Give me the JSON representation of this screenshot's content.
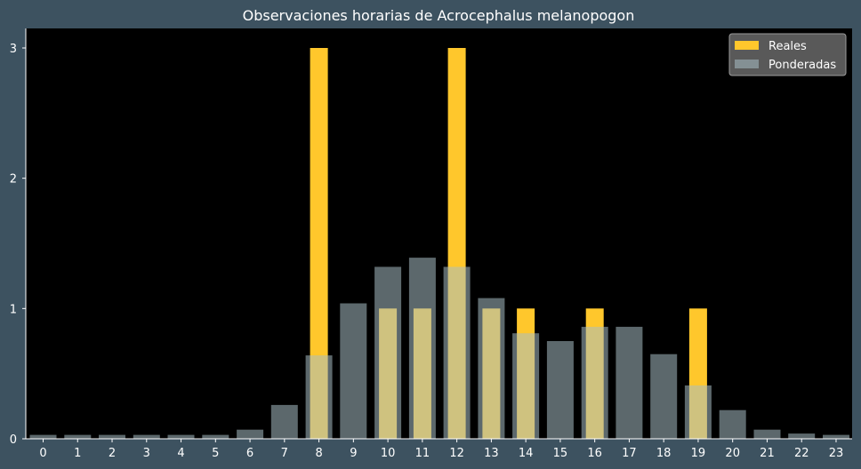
{
  "chart_data": {
    "type": "bar",
    "title": "Observaciones horarias de Acrocephalus melanopogon",
    "xlabel": "",
    "ylabel": "",
    "categories": [
      "0",
      "1",
      "2",
      "3",
      "4",
      "5",
      "6",
      "7",
      "8",
      "9",
      "10",
      "11",
      "12",
      "13",
      "14",
      "15",
      "16",
      "17",
      "18",
      "19",
      "20",
      "21",
      "22",
      "23"
    ],
    "ylim": [
      0,
      3.15
    ],
    "yticks": [
      0,
      1,
      2,
      3
    ],
    "legend_position": "top-right",
    "grid": false,
    "series": [
      {
        "name": "Reales",
        "color": "#ffc72c",
        "values": [
          0,
          0,
          0,
          0,
          0,
          0,
          0,
          0,
          3,
          0,
          1,
          1,
          3,
          1,
          1,
          0,
          1,
          0,
          0,
          1,
          0,
          0,
          0,
          0
        ]
      },
      {
        "name": "Ponderadas",
        "color": "#a7bec4",
        "values": [
          0.03,
          0.03,
          0.03,
          0.03,
          0.03,
          0.03,
          0.07,
          0.26,
          0.64,
          1.04,
          1.32,
          1.39,
          1.32,
          1.08,
          0.81,
          0.75,
          0.86,
          0.86,
          0.65,
          0.41,
          0.22,
          0.07,
          0.04,
          0.03
        ]
      }
    ]
  }
}
